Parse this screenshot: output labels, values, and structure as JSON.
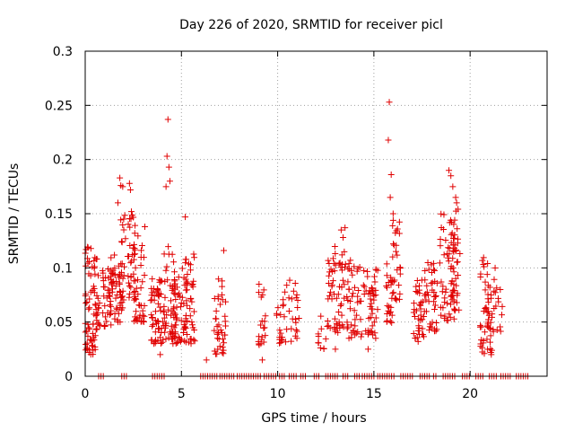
{
  "chart_data": {
    "type": "scatter",
    "title": "Day 226 of 2020, SRMTID for receiver picl",
    "xlabel": "GPS time / hours",
    "ylabel": "SRMTID / TECUs",
    "xlim": [
      0,
      24
    ],
    "ylim": [
      0,
      0.3
    ],
    "x_ticks": [
      0,
      5,
      10,
      15,
      20
    ],
    "x_tick_labels": [
      "0",
      "5",
      "10",
      "15",
      "20"
    ],
    "y_ticks": [
      0,
      0.05,
      0.1,
      0.15,
      0.2,
      0.25,
      0.3
    ],
    "y_tick_labels": [
      "0",
      "0.05",
      "0.1",
      "0.15",
      "0.2",
      "0.25",
      "0.3"
    ],
    "grid": true,
    "marker": "plus",
    "series": [
      {
        "name": "SRMTID",
        "color": "#e00000",
        "clusters": [
          {
            "x0": 0.0,
            "x1": 0.55,
            "ymin": 0.02,
            "ymax": 0.12,
            "n": 60
          },
          {
            "x0": 0.55,
            "x1": 0.8,
            "ymin": 0.04,
            "ymax": 0.11,
            "n": 20
          },
          {
            "x0": 0.9,
            "x1": 1.4,
            "ymin": 0.045,
            "ymax": 0.1,
            "n": 35
          },
          {
            "x0": 1.3,
            "x1": 1.9,
            "ymin": 0.05,
            "ymax": 0.115,
            "n": 40
          },
          {
            "x0": 1.8,
            "x1": 2.1,
            "ymin": 0.06,
            "ymax": 0.15,
            "n": 20
          },
          {
            "x0": 2.2,
            "x1": 2.6,
            "ymin": 0.07,
            "ymax": 0.15,
            "n": 30
          },
          {
            "x0": 2.5,
            "x1": 3.1,
            "ymin": 0.05,
            "ymax": 0.13,
            "n": 40
          },
          {
            "x0": 3.4,
            "x1": 4.2,
            "ymin": 0.03,
            "ymax": 0.09,
            "n": 60
          },
          {
            "x0": 4.1,
            "x1": 4.7,
            "ymin": 0.03,
            "ymax": 0.12,
            "n": 45
          },
          {
            "x0": 4.6,
            "x1": 5.3,
            "ymin": 0.03,
            "ymax": 0.1,
            "n": 50
          },
          {
            "x0": 5.2,
            "x1": 5.7,
            "ymin": 0.03,
            "ymax": 0.12,
            "n": 35
          },
          {
            "x0": 6.7,
            "x1": 7.3,
            "ymin": 0.02,
            "ymax": 0.09,
            "n": 40
          },
          {
            "x0": 9.0,
            "x1": 9.4,
            "ymin": 0.025,
            "ymax": 0.085,
            "n": 20
          },
          {
            "x0": 9.9,
            "x1": 11.2,
            "ymin": 0.03,
            "ymax": 0.09,
            "n": 40
          },
          {
            "x0": 12.1,
            "x1": 12.6,
            "ymin": 0.025,
            "ymax": 0.075,
            "n": 12
          },
          {
            "x0": 12.6,
            "x1": 13.7,
            "ymin": 0.04,
            "ymax": 0.12,
            "n": 60
          },
          {
            "x0": 13.6,
            "x1": 14.4,
            "ymin": 0.035,
            "ymax": 0.11,
            "n": 40
          },
          {
            "x0": 14.4,
            "x1": 15.2,
            "ymin": 0.035,
            "ymax": 0.1,
            "n": 45
          },
          {
            "x0": 15.6,
            "x1": 16.0,
            "ymin": 0.04,
            "ymax": 0.12,
            "n": 20
          },
          {
            "x0": 15.9,
            "x1": 16.4,
            "ymin": 0.07,
            "ymax": 0.145,
            "n": 30
          },
          {
            "x0": 17.0,
            "x1": 17.6,
            "ymin": 0.035,
            "ymax": 0.09,
            "n": 35
          },
          {
            "x0": 17.6,
            "x1": 18.3,
            "ymin": 0.04,
            "ymax": 0.105,
            "n": 40
          },
          {
            "x0": 18.4,
            "x1": 19.2,
            "ymin": 0.05,
            "ymax": 0.15,
            "n": 55
          },
          {
            "x0": 19.0,
            "x1": 19.5,
            "ymin": 0.06,
            "ymax": 0.155,
            "n": 35
          },
          {
            "x0": 20.5,
            "x1": 21.2,
            "ymin": 0.02,
            "ymax": 0.11,
            "n": 55
          },
          {
            "x0": 21.2,
            "x1": 21.7,
            "ymin": 0.04,
            "ymax": 0.09,
            "n": 15
          }
        ],
        "points": [
          [
            4.3,
            0.237
          ],
          [
            4.25,
            0.203
          ],
          [
            4.35,
            0.193
          ],
          [
            4.2,
            0.175
          ],
          [
            4.4,
            0.18
          ],
          [
            1.8,
            0.183
          ],
          [
            1.85,
            0.176
          ],
          [
            1.95,
            0.175
          ],
          [
            2.3,
            0.178
          ],
          [
            2.35,
            0.172
          ],
          [
            1.7,
            0.16
          ],
          [
            2.0,
            0.145
          ],
          [
            2.4,
            0.152
          ],
          [
            5.2,
            0.147
          ],
          [
            3.1,
            0.138
          ],
          [
            15.8,
            0.253
          ],
          [
            15.75,
            0.218
          ],
          [
            15.9,
            0.186
          ],
          [
            15.85,
            0.165
          ],
          [
            16.0,
            0.15
          ],
          [
            18.9,
            0.19
          ],
          [
            19.0,
            0.185
          ],
          [
            19.1,
            0.175
          ],
          [
            19.25,
            0.165
          ],
          [
            19.3,
            0.16
          ],
          [
            13.3,
            0.135
          ],
          [
            13.5,
            0.137
          ],
          [
            13.4,
            0.128
          ],
          [
            7.2,
            0.116
          ],
          [
            21.3,
            0.1
          ],
          [
            6.3,
            0.015
          ],
          [
            9.2,
            0.015
          ],
          [
            14.7,
            0.025
          ],
          [
            3.9,
            0.02
          ],
          [
            0.2,
            0.022
          ],
          [
            21.1,
            0.02
          ],
          [
            13.0,
            0.025
          ],
          [
            5.5,
            0.03
          ],
          [
            17.3,
            0.032
          ],
          [
            11.0,
            0.035
          ]
        ],
        "zero_band": [
          [
            0.7,
            1.0
          ],
          [
            1.9,
            2.2
          ],
          [
            3.5,
            4.0
          ],
          [
            4.1,
            4.2
          ],
          [
            6.0,
            6.9
          ],
          [
            7.0,
            7.8
          ],
          [
            7.9,
            9.2
          ],
          [
            9.3,
            10.0
          ],
          [
            10.1,
            10.4
          ],
          [
            10.6,
            11.0
          ],
          [
            11.2,
            11.5
          ],
          [
            11.9,
            12.2
          ],
          [
            12.5,
            13.2
          ],
          [
            13.4,
            13.7
          ],
          [
            14.0,
            14.3
          ],
          [
            14.4,
            15.0
          ],
          [
            15.2,
            16.1
          ],
          [
            16.4,
            17.1
          ],
          [
            17.4,
            17.9
          ],
          [
            18.1,
            18.3
          ],
          [
            18.6,
            19.3
          ],
          [
            19.6,
            20.0
          ],
          [
            20.3,
            20.7
          ],
          [
            21.0,
            21.4
          ],
          [
            21.6,
            22.1
          ],
          [
            22.4,
            23.0
          ]
        ]
      }
    ]
  }
}
